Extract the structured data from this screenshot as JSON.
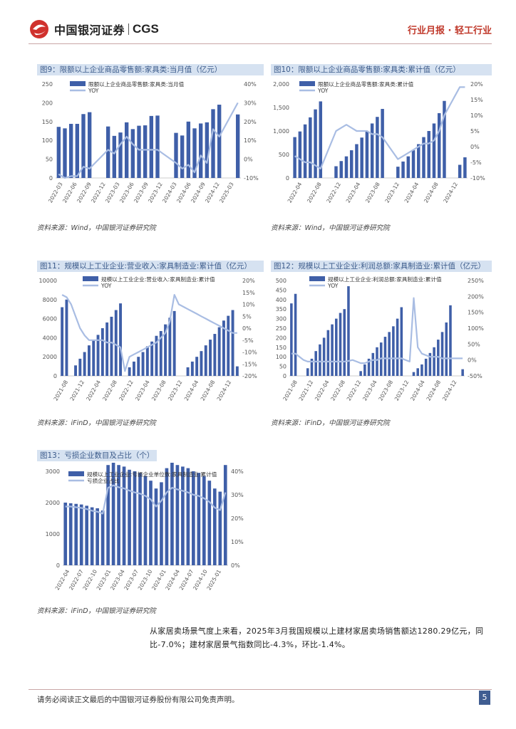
{
  "header": {
    "logo_text": "中国银河证券",
    "logo_en": "CGS",
    "section": "行业月报 · 轻工行业"
  },
  "chart_data": [
    {
      "id": "fig9",
      "type": "bar+line",
      "title": "图9：限额以上企业商品零售额:家具类:当月值（亿元）",
      "series": [
        {
          "name": "限额以上企业商品零售额:家具类:当月值",
          "kind": "bar",
          "values": [
            136,
            132,
            144,
            144,
            170,
            175,
            null,
            null,
            137,
            112,
            121,
            148,
            130,
            139,
            140,
            165,
            166,
            null,
            null,
            120,
            113,
            150,
            132,
            145,
            148,
            183,
            195,
            null,
            null,
            169
          ]
        },
        {
          "name": "YOY",
          "kind": "line",
          "axis": "right",
          "values": [
            -8,
            -10,
            -9,
            -9,
            -4,
            -5,
            null,
            null,
            5,
            3,
            8,
            12,
            8,
            5,
            5,
            5,
            5,
            null,
            null,
            -2,
            -5,
            -3,
            -7,
            2,
            -2,
            16,
            12,
            null,
            null,
            30
          ]
        }
      ],
      "x_ticks": [
        "2022-03",
        "2022-06",
        "2022-09",
        "2022-12",
        "2023-03",
        "2023-06",
        "2023-09",
        "2023-12",
        "2024-03",
        "2024-06",
        "2024-09",
        "2024-12",
        "2025-03"
      ],
      "ylim": [
        0,
        250
      ],
      "y_ticks": [
        "0",
        "50",
        "100",
        "150",
        "200",
        "250"
      ],
      "y2lim": [
        -10,
        40
      ],
      "y2_ticks": [
        "-10%",
        "0%",
        "10%",
        "20%",
        "30%",
        "40%"
      ],
      "source": "资料来源：Wind，中国银河证券研究院"
    },
    {
      "id": "fig10",
      "type": "bar+line",
      "title": "图10：限额以上企业商品零售额:家具类:累计值（亿元）",
      "series": [
        {
          "name": "限额以上企业商品零售额:家具类:累计值",
          "kind": "bar",
          "values": [
            870,
            990,
            1140,
            1290,
            1460,
            1630,
            null,
            null,
            250,
            360,
            460,
            590,
            720,
            860,
            1000,
            1160,
            1300,
            1470,
            null,
            null,
            240,
            350,
            460,
            590,
            720,
            870,
            1000,
            1160,
            1380,
            1640,
            null,
            null,
            280,
            440
          ]
        },
        {
          "name": "YOY",
          "kind": "line",
          "axis": "right",
          "values": [
            -3,
            -4,
            -5,
            -5,
            -6,
            -7,
            null,
            null,
            5,
            6,
            7,
            6,
            5,
            5,
            5,
            4,
            4,
            3,
            null,
            null,
            -4,
            -3,
            -2,
            -1,
            0,
            1,
            1,
            2,
            5,
            10,
            null,
            null,
            19,
            19
          ]
        }
      ],
      "x_ticks": [
        "2022-04",
        "2022-08",
        "2022-12",
        "2023-04",
        "2023-08",
        "2023-12",
        "2024-04",
        "2024-08",
        "2024-12"
      ],
      "ylim": [
        0,
        2000
      ],
      "y_ticks": [
        "0",
        "500",
        "1,000",
        "1,500",
        "2,000"
      ],
      "y2lim": [
        -10,
        20
      ],
      "y2_ticks": [
        "-10%",
        "-5%",
        "0%",
        "5%",
        "10%",
        "15%",
        "20%"
      ],
      "source": "资料来源：Wind，中国银河证券研究院"
    },
    {
      "id": "fig11",
      "type": "bar+line",
      "title": "图11：规模以上工业企业:营业收入:家具制造业:累计值（亿元）",
      "series": [
        {
          "name": "规模以上工业企业:营业收入:家具制造业:累计值",
          "kind": "bar",
          "values": [
            7200,
            8000,
            null,
            1100,
            1800,
            2500,
            3200,
            3700,
            4300,
            5000,
            5600,
            6200,
            6900,
            7600,
            null,
            900,
            1500,
            2000,
            2500,
            3100,
            3600,
            4200,
            4700,
            5400,
            6100,
            6800,
            null,
            null,
            900,
            1500,
            2000,
            2600,
            3200,
            3800,
            4400,
            5100,
            5800,
            6300,
            6900,
            1000
          ]
        },
        {
          "name": "YOY",
          "kind": "line",
          "axis": "right",
          "values": [
            14,
            13,
            10,
            5,
            0,
            -3,
            -5,
            -5,
            -5,
            -5,
            -6,
            -6,
            -7,
            -8,
            -18,
            -12,
            -11,
            -10,
            -9,
            -8,
            -7,
            -6,
            -4,
            -2,
            3,
            14,
            10,
            9,
            8,
            7,
            6,
            5,
            4,
            3,
            2,
            1,
            0,
            -1,
            -2,
            -2
          ]
        }
      ],
      "x_ticks": [
        "2021-08",
        "2021-12",
        "2022-04",
        "2022-08",
        "2022-12",
        "2023-04",
        "2023-08",
        "2023-12",
        "2024-04",
        "2024-08",
        "2024-12"
      ],
      "ylim": [
        0,
        10000
      ],
      "y_ticks": [
        "0",
        "2000",
        "4000",
        "6000",
        "8000",
        "10000"
      ],
      "y2lim": [
        -20,
        20
      ],
      "y2_ticks": [
        "-20%",
        "-15%",
        "-10%",
        "-5%",
        "0%",
        "5%",
        "10%",
        "15%",
        "20%"
      ],
      "source": "资料来源：iFinD，中国银河证券研究院"
    },
    {
      "id": "fig12",
      "type": "bar+line",
      "title": "图12：规模以上工业企业:利润总额:家具制造业:累计值（亿元）",
      "series": [
        {
          "name": "规模以上工业企业:利润总额:家具制造业:累计值",
          "kind": "bar",
          "values": [
            380,
            430,
            null,
            null,
            40,
            90,
            130,
            165,
            200,
            240,
            270,
            300,
            330,
            350,
            470,
            null,
            null,
            25,
            60,
            90,
            120,
            150,
            175,
            205,
            230,
            260,
            300,
            360,
            null,
            null,
            20,
            40,
            60,
            90,
            120,
            150,
            190,
            230,
            280,
            370,
            null,
            null,
            35
          ]
        },
        {
          "name": "YOY",
          "kind": "line",
          "axis": "right",
          "values": [
            20,
            20,
            10,
            0,
            -5,
            -5,
            -5,
            -5,
            -5,
            -5,
            -5,
            -5,
            -5,
            -5,
            -3,
            0,
            -5,
            -10,
            -10,
            -5,
            0,
            0,
            5,
            5,
            5,
            5,
            5,
            5,
            0,
            -5,
            195,
            40,
            20,
            15,
            10,
            10,
            10,
            5,
            5,
            5,
            5,
            5,
            5
          ]
        }
      ],
      "x_ticks": [
        "2021-08",
        "2021-12",
        "2022-04",
        "2022-08",
        "2022-12",
        "2023-04",
        "2023-08",
        "2023-12",
        "2024-04",
        "2024-08",
        "2024-12"
      ],
      "ylim": [
        0,
        500
      ],
      "y_ticks": [
        "0",
        "50",
        "100",
        "150",
        "200",
        "250",
        "300",
        "350",
        "400",
        "450",
        "500"
      ],
      "y2lim": [
        -50,
        250
      ],
      "y2_ticks": [
        "-50%",
        "0%",
        "50%",
        "100%",
        "150%",
        "200%",
        "250%"
      ],
      "source": "资料来源：iFinD，中国银河证券研究院"
    },
    {
      "id": "fig13",
      "type": "bar+line",
      "title": "图13：亏损企业数目及占比（个）",
      "series": [
        {
          "name": "规模以上工业企业:亏损企业单位数:家具制造业:累计值",
          "kind": "bar",
          "values": [
            2000,
            1980,
            1960,
            1940,
            1900,
            1850,
            1820,
            1750,
            3200,
            3350,
            3200,
            3150,
            3050,
            3000,
            2950,
            2850,
            2700,
            2450,
            2650,
            3100,
            3300,
            3200,
            3150,
            3100,
            3000,
            2950,
            2850,
            2700,
            2450,
            2350,
            3200
          ]
        },
        {
          "name": "亏损企业占比",
          "kind": "line",
          "axis": "right",
          "values": [
            25,
            25,
            24.7,
            24.4,
            23.9,
            23.2,
            22.8,
            22,
            33,
            34,
            33.2,
            32.7,
            31.8,
            31,
            30.5,
            29.5,
            28,
            25,
            27.5,
            31,
            33,
            32.3,
            31.7,
            31,
            30,
            29.5,
            28.5,
            27,
            24.5,
            23.5,
            31
          ]
        }
      ],
      "x_ticks": [
        "2022-04",
        "2022-07",
        "2022-10",
        "2023-01",
        "2023-04",
        "2023-07",
        "2023-10",
        "2024-01",
        "2024-04",
        "2024-07",
        "2024-10",
        "2025-01"
      ],
      "ylim": [
        0,
        3000
      ],
      "y_ticks": [
        "0",
        "1000",
        "2000",
        "3000"
      ],
      "y2lim": [
        0,
        40
      ],
      "y2_ticks": [
        "0%",
        "10%",
        "20%",
        "30%",
        "40%"
      ],
      "source": "资料来源：iFinD，中国银河证券研究院"
    }
  ],
  "body": {
    "paragraph": "从家居卖场景气度上来看，2025年3月我国规模以上建材家居卖场销售额达1280.29亿元，同比-7.0%；建材家居景气指数同比-4.3%，环比-1.4%。"
  },
  "footer": {
    "disclaimer": "请务必阅读正文最后的中国银河证券股份有限公司免责声明。",
    "page": "5"
  },
  "colors": {
    "bar": "#3f5fa8",
    "line": "#a9bde3",
    "title_bg": "#d6e2f1",
    "accent": "#c0392b"
  }
}
